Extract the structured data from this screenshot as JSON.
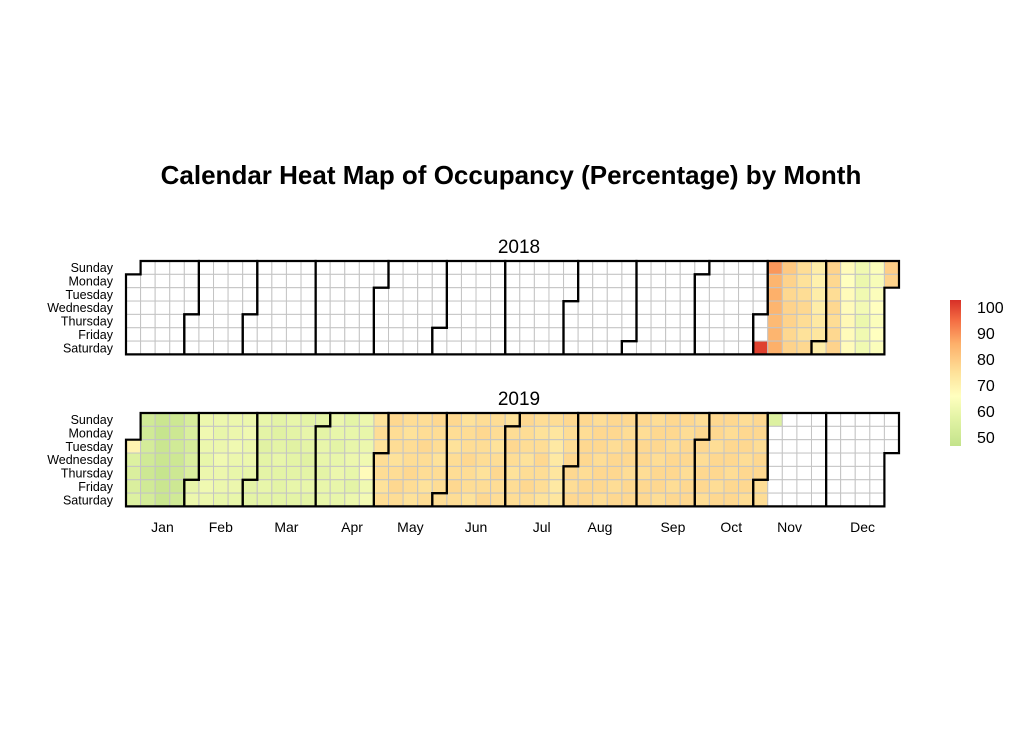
{
  "chart_data": {
    "type": "heatmap",
    "title": "Calendar Heat Map of Occupancy (Percentage) by Month",
    "weekdays": [
      "Sunday",
      "Monday",
      "Tuesday",
      "Wednesday",
      "Thursday",
      "Friday",
      "Saturday"
    ],
    "month_labels": [
      "Jan",
      "Feb",
      "Mar",
      "Apr",
      "May",
      "Jun",
      "Jul",
      "Aug",
      "Sep",
      "Oct",
      "Nov",
      "Dec"
    ],
    "legend": {
      "ticks": [
        "100",
        "90",
        "80",
        "70",
        "60",
        "50"
      ],
      "range": [
        50,
        100
      ]
    },
    "color_stops": [
      [
        50,
        "#c3e38b"
      ],
      [
        60,
        "#e4f4a6"
      ],
      [
        67,
        "#ffffbf"
      ],
      [
        75,
        "#fee29a"
      ],
      [
        85,
        "#fdb06a"
      ],
      [
        93,
        "#f46d43"
      ],
      [
        100,
        "#d73027"
      ]
    ],
    "years": [
      {
        "year": "2018",
        "daily_values_by_month": {
          "11": [
            null,
            null,
            98,
            88,
            84,
            85,
            84,
            83,
            84,
            85,
            80,
            78,
            77,
            78,
            78,
            77,
            78,
            76,
            75,
            76,
            77,
            76,
            75,
            77,
            72,
            71,
            72,
            72,
            73,
            74
          ],
          "12": [
            72,
            78,
            77,
            76,
            77,
            76,
            77,
            78,
            68,
            67,
            68,
            68,
            69,
            68,
            68,
            63,
            62,
            63,
            64,
            62,
            63,
            63,
            66,
            65,
            66,
            67,
            66,
            67,
            66,
            79,
            78
          ]
        }
      },
      {
        "year": "2019",
        "daily_values_by_month": {
          "1": [
            70,
            58,
            57,
            57,
            58,
            54,
            54,
            55,
            54,
            53,
            54,
            55,
            52,
            51,
            52,
            52,
            51,
            52,
            52,
            53,
            53,
            54,
            53,
            53,
            53,
            54,
            56,
            57,
            56,
            57,
            57
          ],
          "2": [
            61,
            62,
            62,
            63,
            62,
            61,
            62,
            63,
            62,
            62,
            61,
            62,
            63,
            62,
            62,
            61,
            62,
            62,
            63,
            62,
            61,
            62,
            61,
            62,
            63,
            62,
            62,
            61
          ],
          "3": [
            60,
            60,
            61,
            60,
            59,
            60,
            60,
            61,
            60,
            60,
            59,
            60,
            61,
            60,
            60,
            60,
            61,
            60,
            59,
            60,
            60,
            61,
            60,
            60,
            61,
            60,
            59,
            60,
            61,
            60,
            60
          ],
          "4": [
            60,
            61,
            61,
            60,
            61,
            61,
            62,
            61,
            60,
            61,
            62,
            61,
            61,
            60,
            61,
            61,
            62,
            61,
            60,
            62,
            62,
            61,
            62,
            63,
            68,
            63,
            64,
            75,
            76,
            75
          ],
          "5": [
            76,
            76,
            75,
            76,
            77,
            76,
            76,
            75,
            76,
            77,
            76,
            76,
            75,
            76,
            76,
            77,
            76,
            75,
            76,
            76,
            77,
            76,
            76,
            75,
            76,
            77,
            76,
            76,
            75,
            76,
            76
          ],
          "6": [
            76,
            77,
            76,
            75,
            76,
            76,
            77,
            76,
            75,
            76,
            76,
            77,
            76,
            76,
            75,
            76,
            77,
            76,
            76,
            75,
            76,
            77,
            76,
            76,
            75,
            76,
            77,
            76,
            76,
            75
          ],
          "7": [
            76,
            77,
            76,
            75,
            76,
            76,
            77,
            76,
            76,
            75,
            76,
            77,
            76,
            76,
            75,
            76,
            77,
            76,
            76,
            75,
            76,
            74,
            73,
            73,
            74,
            73,
            74,
            77,
            76,
            76,
            77
          ],
          "8": [
            77,
            76,
            77,
            77,
            76,
            77,
            77,
            76,
            77,
            77,
            76,
            77,
            77,
            76,
            77,
            77,
            76,
            77,
            77,
            76,
            77,
            77,
            76,
            77,
            77,
            76,
            77,
            77,
            76,
            77,
            77
          ],
          "9": [
            77,
            76,
            77,
            77,
            76,
            77,
            77,
            76,
            77,
            77,
            76,
            77,
            77,
            76,
            77,
            77,
            76,
            77,
            77,
            76,
            77,
            77,
            76,
            77,
            77,
            76,
            77,
            77,
            76,
            77
          ],
          "10": [
            77,
            76,
            77,
            77,
            76,
            77,
            77,
            76,
            77,
            77,
            76,
            77,
            77,
            76,
            77,
            77,
            76,
            77,
            77,
            76,
            77,
            77,
            76,
            77,
            77,
            76,
            77,
            77,
            76,
            77,
            77
          ],
          "11": [
            76,
            76,
            58
          ]
        }
      }
    ]
  }
}
